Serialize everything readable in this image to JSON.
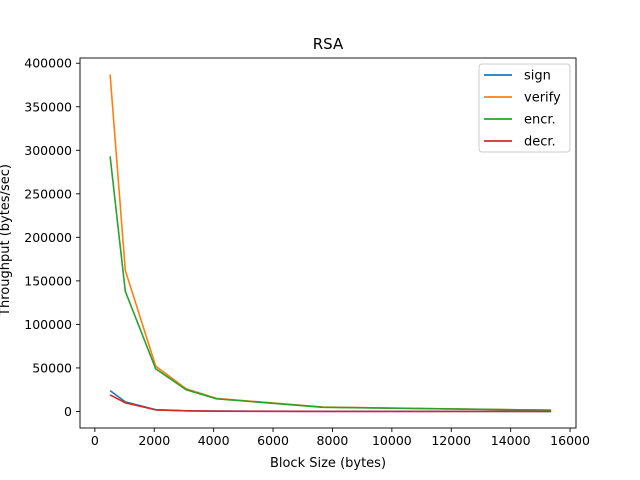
{
  "chart_data": {
    "type": "line",
    "title": "RSA",
    "xlabel": "Block Size (bytes)",
    "ylabel": "Throughput (bytes/sec)",
    "xlim": [
      -500,
      16200
    ],
    "ylim": [
      -19000,
      406000
    ],
    "xticks": [
      0,
      2000,
      4000,
      6000,
      8000,
      10000,
      12000,
      14000,
      16000
    ],
    "xtick_labels": [
      "0",
      "2000",
      "4000",
      "6000",
      "8000",
      "10000",
      "12000",
      "14000",
      "16000"
    ],
    "yticks": [
      0,
      50000,
      100000,
      150000,
      200000,
      250000,
      300000,
      350000,
      400000
    ],
    "ytick_labels": [
      "0",
      "50000",
      "100000",
      "150000",
      "200000",
      "250000",
      "300000",
      "350000",
      "400000"
    ],
    "grid": false,
    "legend_position": "top-right",
    "x": [
      512,
      1024,
      2048,
      3072,
      4096,
      7680,
      15360
    ],
    "series": [
      {
        "name": "sign",
        "color": "#1f77b4",
        "values": [
          24000,
          11000,
          2000,
          800,
          400,
          150,
          50
        ]
      },
      {
        "name": "verify",
        "color": "#ff7f0e",
        "values": [
          387000,
          162000,
          52000,
          26000,
          15000,
          5000,
          1500
        ]
      },
      {
        "name": "encr.",
        "color": "#2ca02c",
        "values": [
          293000,
          138000,
          49000,
          25000,
          14500,
          4800,
          1400
        ]
      },
      {
        "name": "decr.",
        "color": "#d62728",
        "values": [
          19000,
          10000,
          1800,
          700,
          350,
          120,
          40
        ]
      }
    ]
  }
}
